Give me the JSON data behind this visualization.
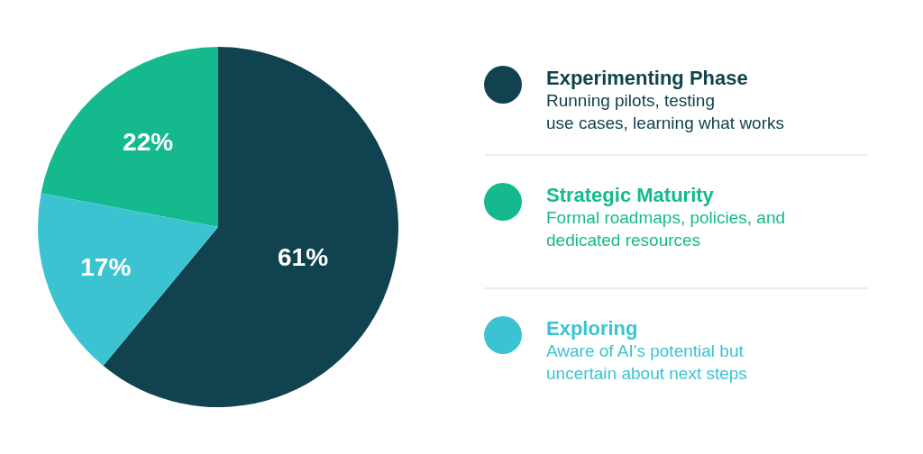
{
  "chart_data": {
    "type": "pie",
    "categories": [
      "Experimenting Phase",
      "Strategic Maturity",
      "Exploring"
    ],
    "values": [
      61,
      22,
      17
    ],
    "colors": [
      "#10434f",
      "#14b98d",
      "#3cc3d1"
    ],
    "value_labels": [
      "61%",
      "22%",
      "17%"
    ],
    "legend": "right",
    "annotations": [
      "Running pilots, testing\nuse cases, learning what works",
      "Formal roadmaps, policies, and\ndedicated resources",
      "Aware of AI's potential but\nuncertain about next steps"
    ]
  }
}
